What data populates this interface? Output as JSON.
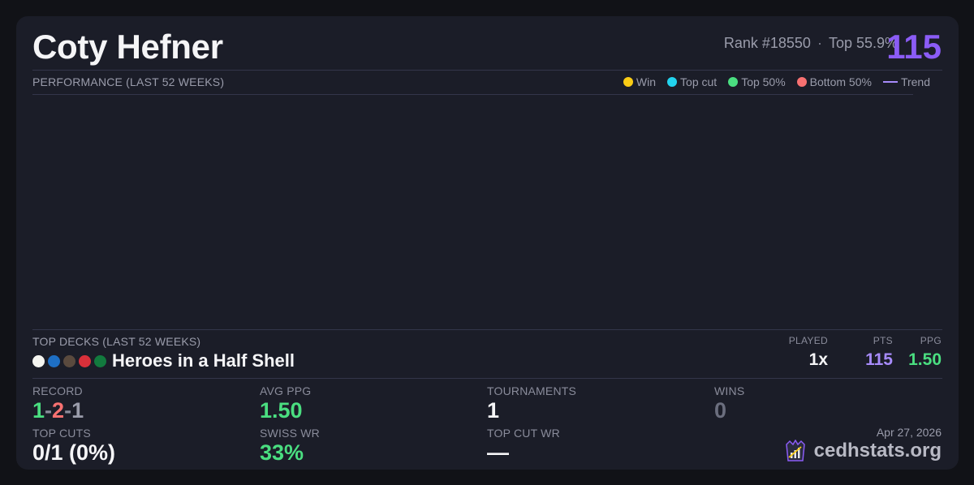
{
  "player": {
    "name": "Coty Hefner",
    "rank": "Rank #18550",
    "top_percent": "Top 55.9%",
    "points": "115",
    "separator": "·"
  },
  "performance": {
    "label": "PERFORMANCE (LAST 52 WEEKS)",
    "legend": [
      {
        "label": "Win",
        "color": "#facc15"
      },
      {
        "label": "Top cut",
        "color": "#22d3ee"
      },
      {
        "label": "Top 50%",
        "color": "#4ade80"
      },
      {
        "label": "Bottom 50%",
        "color": "#f87171"
      },
      {
        "label": "Trend",
        "color": "#a78bfa"
      }
    ]
  },
  "top_decks": {
    "label": "TOP DECKS (LAST 52 WEEKS)",
    "columns": {
      "played": "PLAYED",
      "pts": "PTS",
      "ppg": "PPG"
    },
    "decks": [
      {
        "name": "Heroes in a Half Shell",
        "colors": [
          "#f5f5f0",
          "#1e6fc4",
          "#5a4a3e",
          "#d9303a",
          "#127a3e"
        ],
        "played": "1x",
        "pts": "115",
        "ppg": "1.50"
      }
    ]
  },
  "stats": {
    "record": {
      "label": "RECORD",
      "wins": "1",
      "losses": "2",
      "draws": "1",
      "sep": "-"
    },
    "avg_ppg": {
      "label": "AVG PPG",
      "value": "1.50"
    },
    "tournaments": {
      "label": "TOURNAMENTS",
      "value": "1"
    },
    "wins": {
      "label": "WINS",
      "value": "0"
    },
    "top_cuts": {
      "label": "TOP CUTS",
      "value": "0/1 (0%)"
    },
    "swiss_wr": {
      "label": "SWISS WR",
      "value": "33%"
    },
    "top_cut_wr": {
      "label": "TOP CUT WR",
      "value": "—"
    }
  },
  "footer": {
    "date": "Apr 27, 2026",
    "brand": "cedhstats.org",
    "brand_icon": "cedhstats-logo-icon"
  },
  "colors": {
    "accent": "#8b5cf6",
    "positive": "#4ade80",
    "negative": "#f87171",
    "muted": "#8a8c9b"
  }
}
